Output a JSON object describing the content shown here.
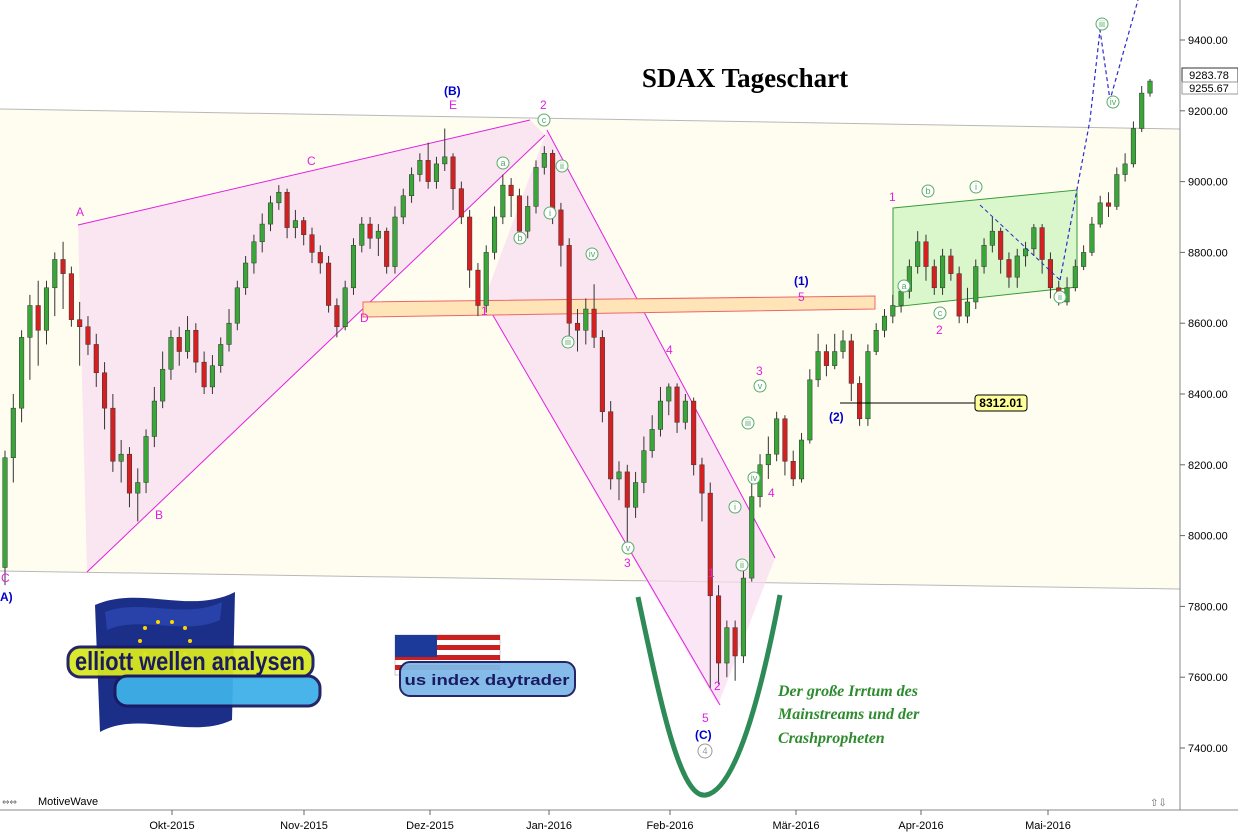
{
  "chart_data": {
    "type": "candlestick",
    "title": "SDAX Tageschart",
    "y_ticks": [
      "7400.00",
      "7600.00",
      "7800.00",
      "8000.00",
      "8200.00",
      "8400.00",
      "8600.00",
      "8800.00",
      "9000.00",
      "9200.00",
      "9400.00"
    ],
    "x_ticks": [
      "Okt-2015",
      "Nov-2015",
      "Dez-2015",
      "Jan-2016",
      "Feb-2016",
      "Mär-2016",
      "Apr-2016",
      "Mai-2016"
    ],
    "ylim": [
      7240,
      9520
    ],
    "price_tags": {
      "last": "9283.78",
      "prev": "9255.67"
    },
    "callout_value": "8312.01",
    "candles": [
      [
        7910,
        8220,
        7860,
        8240
      ],
      [
        8220,
        8360,
        8150,
        8400
      ],
      [
        8360,
        8560,
        8320,
        8580
      ],
      [
        8560,
        8650,
        8440,
        8680
      ],
      [
        8650,
        8580,
        8480,
        8720
      ],
      [
        8580,
        8700,
        8540,
        8720
      ],
      [
        8700,
        8780,
        8620,
        8800
      ],
      [
        8780,
        8740,
        8640,
        8830
      ],
      [
        8740,
        8610,
        8590,
        8760
      ],
      [
        8610,
        8590,
        8480,
        8660
      ],
      [
        8590,
        8540,
        8510,
        8620
      ],
      [
        8540,
        8460,
        8420,
        8570
      ],
      [
        8460,
        8360,
        8300,
        8490
      ],
      [
        8360,
        8210,
        8180,
        8400
      ],
      [
        8210,
        8230,
        8150,
        8270
      ],
      [
        8230,
        8120,
        8080,
        8250
      ],
      [
        8120,
        8150,
        8040,
        8190
      ],
      [
        8150,
        8280,
        8120,
        8300
      ],
      [
        8280,
        8380,
        8250,
        8420
      ],
      [
        8380,
        8470,
        8360,
        8520
      ],
      [
        8470,
        8560,
        8440,
        8580
      ],
      [
        8560,
        8520,
        8480,
        8590
      ],
      [
        8520,
        8580,
        8500,
        8620
      ],
      [
        8580,
        8490,
        8460,
        8600
      ],
      [
        8490,
        8420,
        8400,
        8520
      ],
      [
        8420,
        8480,
        8400,
        8510
      ],
      [
        8480,
        8540,
        8460,
        8560
      ],
      [
        8540,
        8600,
        8520,
        8640
      ],
      [
        8600,
        8700,
        8580,
        8720
      ],
      [
        8700,
        8770,
        8680,
        8790
      ],
      [
        8770,
        8830,
        8740,
        8850
      ],
      [
        8830,
        8880,
        8800,
        8910
      ],
      [
        8880,
        8940,
        8860,
        8960
      ],
      [
        8940,
        8970,
        8920,
        8990
      ],
      [
        8970,
        8870,
        8840,
        8980
      ],
      [
        8870,
        8890,
        8840,
        8920
      ],
      [
        8890,
        8850,
        8820,
        8900
      ],
      [
        8850,
        8800,
        8770,
        8870
      ],
      [
        8800,
        8770,
        8740,
        8820
      ],
      [
        8770,
        8650,
        8630,
        8790
      ],
      [
        8650,
        8590,
        8560,
        8670
      ],
      [
        8590,
        8700,
        8580,
        8720
      ],
      [
        8700,
        8820,
        8680,
        8840
      ],
      [
        8820,
        8880,
        8800,
        8900
      ],
      [
        8880,
        8840,
        8810,
        8900
      ],
      [
        8840,
        8860,
        8790,
        8880
      ],
      [
        8860,
        8760,
        8740,
        8870
      ],
      [
        8760,
        8900,
        8740,
        8930
      ],
      [
        8900,
        8960,
        8880,
        8980
      ],
      [
        8960,
        9020,
        8940,
        9040
      ],
      [
        9020,
        9060,
        9000,
        9080
      ],
      [
        9060,
        9000,
        8980,
        9110
      ],
      [
        9000,
        9050,
        8980,
        9070
      ],
      [
        9050,
        9070,
        9030,
        9150
      ],
      [
        9070,
        8980,
        8920,
        9080
      ],
      [
        8980,
        8900,
        8880,
        9000
      ],
      [
        8900,
        8750,
        8700,
        8920
      ],
      [
        8750,
        8650,
        8620,
        8770
      ],
      [
        8650,
        8800,
        8630,
        8820
      ],
      [
        8800,
        8900,
        8780,
        8930
      ],
      [
        8900,
        8990,
        8880,
        9020
      ],
      [
        8990,
        8960,
        8900,
        9010
      ],
      [
        8960,
        8860,
        8830,
        8980
      ],
      [
        8860,
        8930,
        8840,
        8960
      ],
      [
        8930,
        9040,
        8910,
        9060
      ],
      [
        9040,
        9080,
        9020,
        9100
      ],
      [
        9080,
        8920,
        8880,
        9090
      ],
      [
        8920,
        8820,
        8760,
        8940
      ],
      [
        8820,
        8600,
        8560,
        8840
      ],
      [
        8600,
        8580,
        8520,
        8640
      ],
      [
        8580,
        8640,
        8540,
        8670
      ],
      [
        8640,
        8560,
        8530,
        8710
      ],
      [
        8560,
        8350,
        8320,
        8580
      ],
      [
        8350,
        8160,
        8130,
        8380
      ],
      [
        8160,
        8180,
        8100,
        8210
      ],
      [
        8180,
        8080,
        7970,
        8200
      ],
      [
        8080,
        8150,
        8050,
        8180
      ],
      [
        8150,
        8240,
        8120,
        8280
      ],
      [
        8240,
        8300,
        8220,
        8340
      ],
      [
        8300,
        8380,
        8280,
        8420
      ],
      [
        8380,
        8420,
        8340,
        8430
      ],
      [
        8420,
        8320,
        8290,
        8430
      ],
      [
        8320,
        8380,
        8300,
        8400
      ],
      [
        8380,
        8200,
        8170,
        8390
      ],
      [
        8200,
        8120,
        8040,
        8220
      ],
      [
        8120,
        7830,
        7570,
        8150
      ],
      [
        7830,
        7640,
        7580,
        7860
      ],
      [
        7640,
        7740,
        7600,
        7760
      ],
      [
        7740,
        7660,
        7590,
        7760
      ],
      [
        7660,
        7880,
        7640,
        7900
      ],
      [
        7880,
        8110,
        7870,
        8150
      ],
      [
        8110,
        8200,
        8080,
        8230
      ],
      [
        8200,
        8230,
        8160,
        8280
      ],
      [
        8230,
        8330,
        8210,
        8350
      ],
      [
        8330,
        8210,
        8170,
        8340
      ],
      [
        8210,
        8160,
        8140,
        8240
      ],
      [
        8160,
        8270,
        8150,
        8290
      ],
      [
        8270,
        8440,
        8260,
        8470
      ],
      [
        8440,
        8520,
        8420,
        8570
      ],
      [
        8520,
        8480,
        8450,
        8540
      ],
      [
        8480,
        8520,
        8470,
        8570
      ],
      [
        8520,
        8550,
        8500,
        8580
      ],
      [
        8550,
        8430,
        8380,
        8570
      ],
      [
        8430,
        8330,
        8310,
        8450
      ],
      [
        8330,
        8520,
        8310,
        8540
      ],
      [
        8520,
        8580,
        8510,
        8600
      ],
      [
        8580,
        8620,
        8560,
        8640
      ],
      [
        8620,
        8650,
        8600,
        8680
      ],
      [
        8650,
        8690,
        8630,
        8720
      ],
      [
        8690,
        8760,
        8670,
        8780
      ],
      [
        8760,
        8830,
        8740,
        8860
      ],
      [
        8830,
        8760,
        8720,
        8850
      ],
      [
        8760,
        8700,
        8680,
        8780
      ],
      [
        8700,
        8790,
        8680,
        8810
      ],
      [
        8790,
        8740,
        8720,
        8810
      ],
      [
        8740,
        8620,
        8600,
        8760
      ],
      [
        8620,
        8660,
        8600,
        8700
      ],
      [
        8660,
        8760,
        8640,
        8780
      ],
      [
        8760,
        8820,
        8740,
        8840
      ],
      [
        8820,
        8860,
        8800,
        8900
      ],
      [
        8860,
        8780,
        8740,
        8870
      ],
      [
        8780,
        8730,
        8700,
        8800
      ],
      [
        8730,
        8790,
        8700,
        8810
      ],
      [
        8790,
        8810,
        8760,
        8830
      ],
      [
        8810,
        8870,
        8790,
        8880
      ],
      [
        8870,
        8780,
        8740,
        8880
      ],
      [
        8780,
        8700,
        8670,
        8800
      ],
      [
        8700,
        8660,
        8650,
        8720
      ],
      [
        8660,
        8700,
        8650,
        8730
      ],
      [
        8700,
        8760,
        8690,
        8780
      ],
      [
        8760,
        8800,
        8750,
        8820
      ],
      [
        8800,
        8880,
        8790,
        8900
      ],
      [
        8880,
        8940,
        8870,
        8960
      ],
      [
        8940,
        8930,
        8900,
        8970
      ],
      [
        8930,
        9020,
        8920,
        9040
      ],
      [
        9020,
        9050,
        9000,
        9080
      ],
      [
        9050,
        9150,
        9040,
        9170
      ],
      [
        9150,
        9250,
        9140,
        9270
      ],
      [
        9250,
        9284,
        9240,
        9290
      ]
    ]
  },
  "wave_labels": {
    "A": "A",
    "B": "B",
    "C": "C",
    "D": "D",
    "E": "E",
    "C_left": "C",
    "A_left": "A)",
    "paren_B": "(B)",
    "paren_C": "(C)",
    "paren_1": "(1)",
    "paren_2": "(2)",
    "n1": "1",
    "n2": "2",
    "n3": "3",
    "n4": "4",
    "n5": "5",
    "c_a": "a",
    "c_b": "b",
    "c_c": "c",
    "c_i": "i",
    "c_ii": "ii",
    "c_iii": "iii",
    "c_iv": "iv",
    "c_v": "v",
    "c_4": "4"
  },
  "annotation": {
    "line1": "Der große Irrtum des",
    "line2": "Mainstreams und der",
    "line3": "Crashpropheten"
  },
  "logos": {
    "elliott": "elliott wellen analysen",
    "usindex": "us index daytrader"
  },
  "footer": {
    "brand": "MotiveWave"
  },
  "colors": {
    "up": "#3aa63a",
    "down": "#d42020",
    "magenta": "#e020e0",
    "blue_label": "#0000cc",
    "green_circle": "#5aaa6a",
    "band": "#fffdf0",
    "channel_green": "#d4f5c4"
  }
}
